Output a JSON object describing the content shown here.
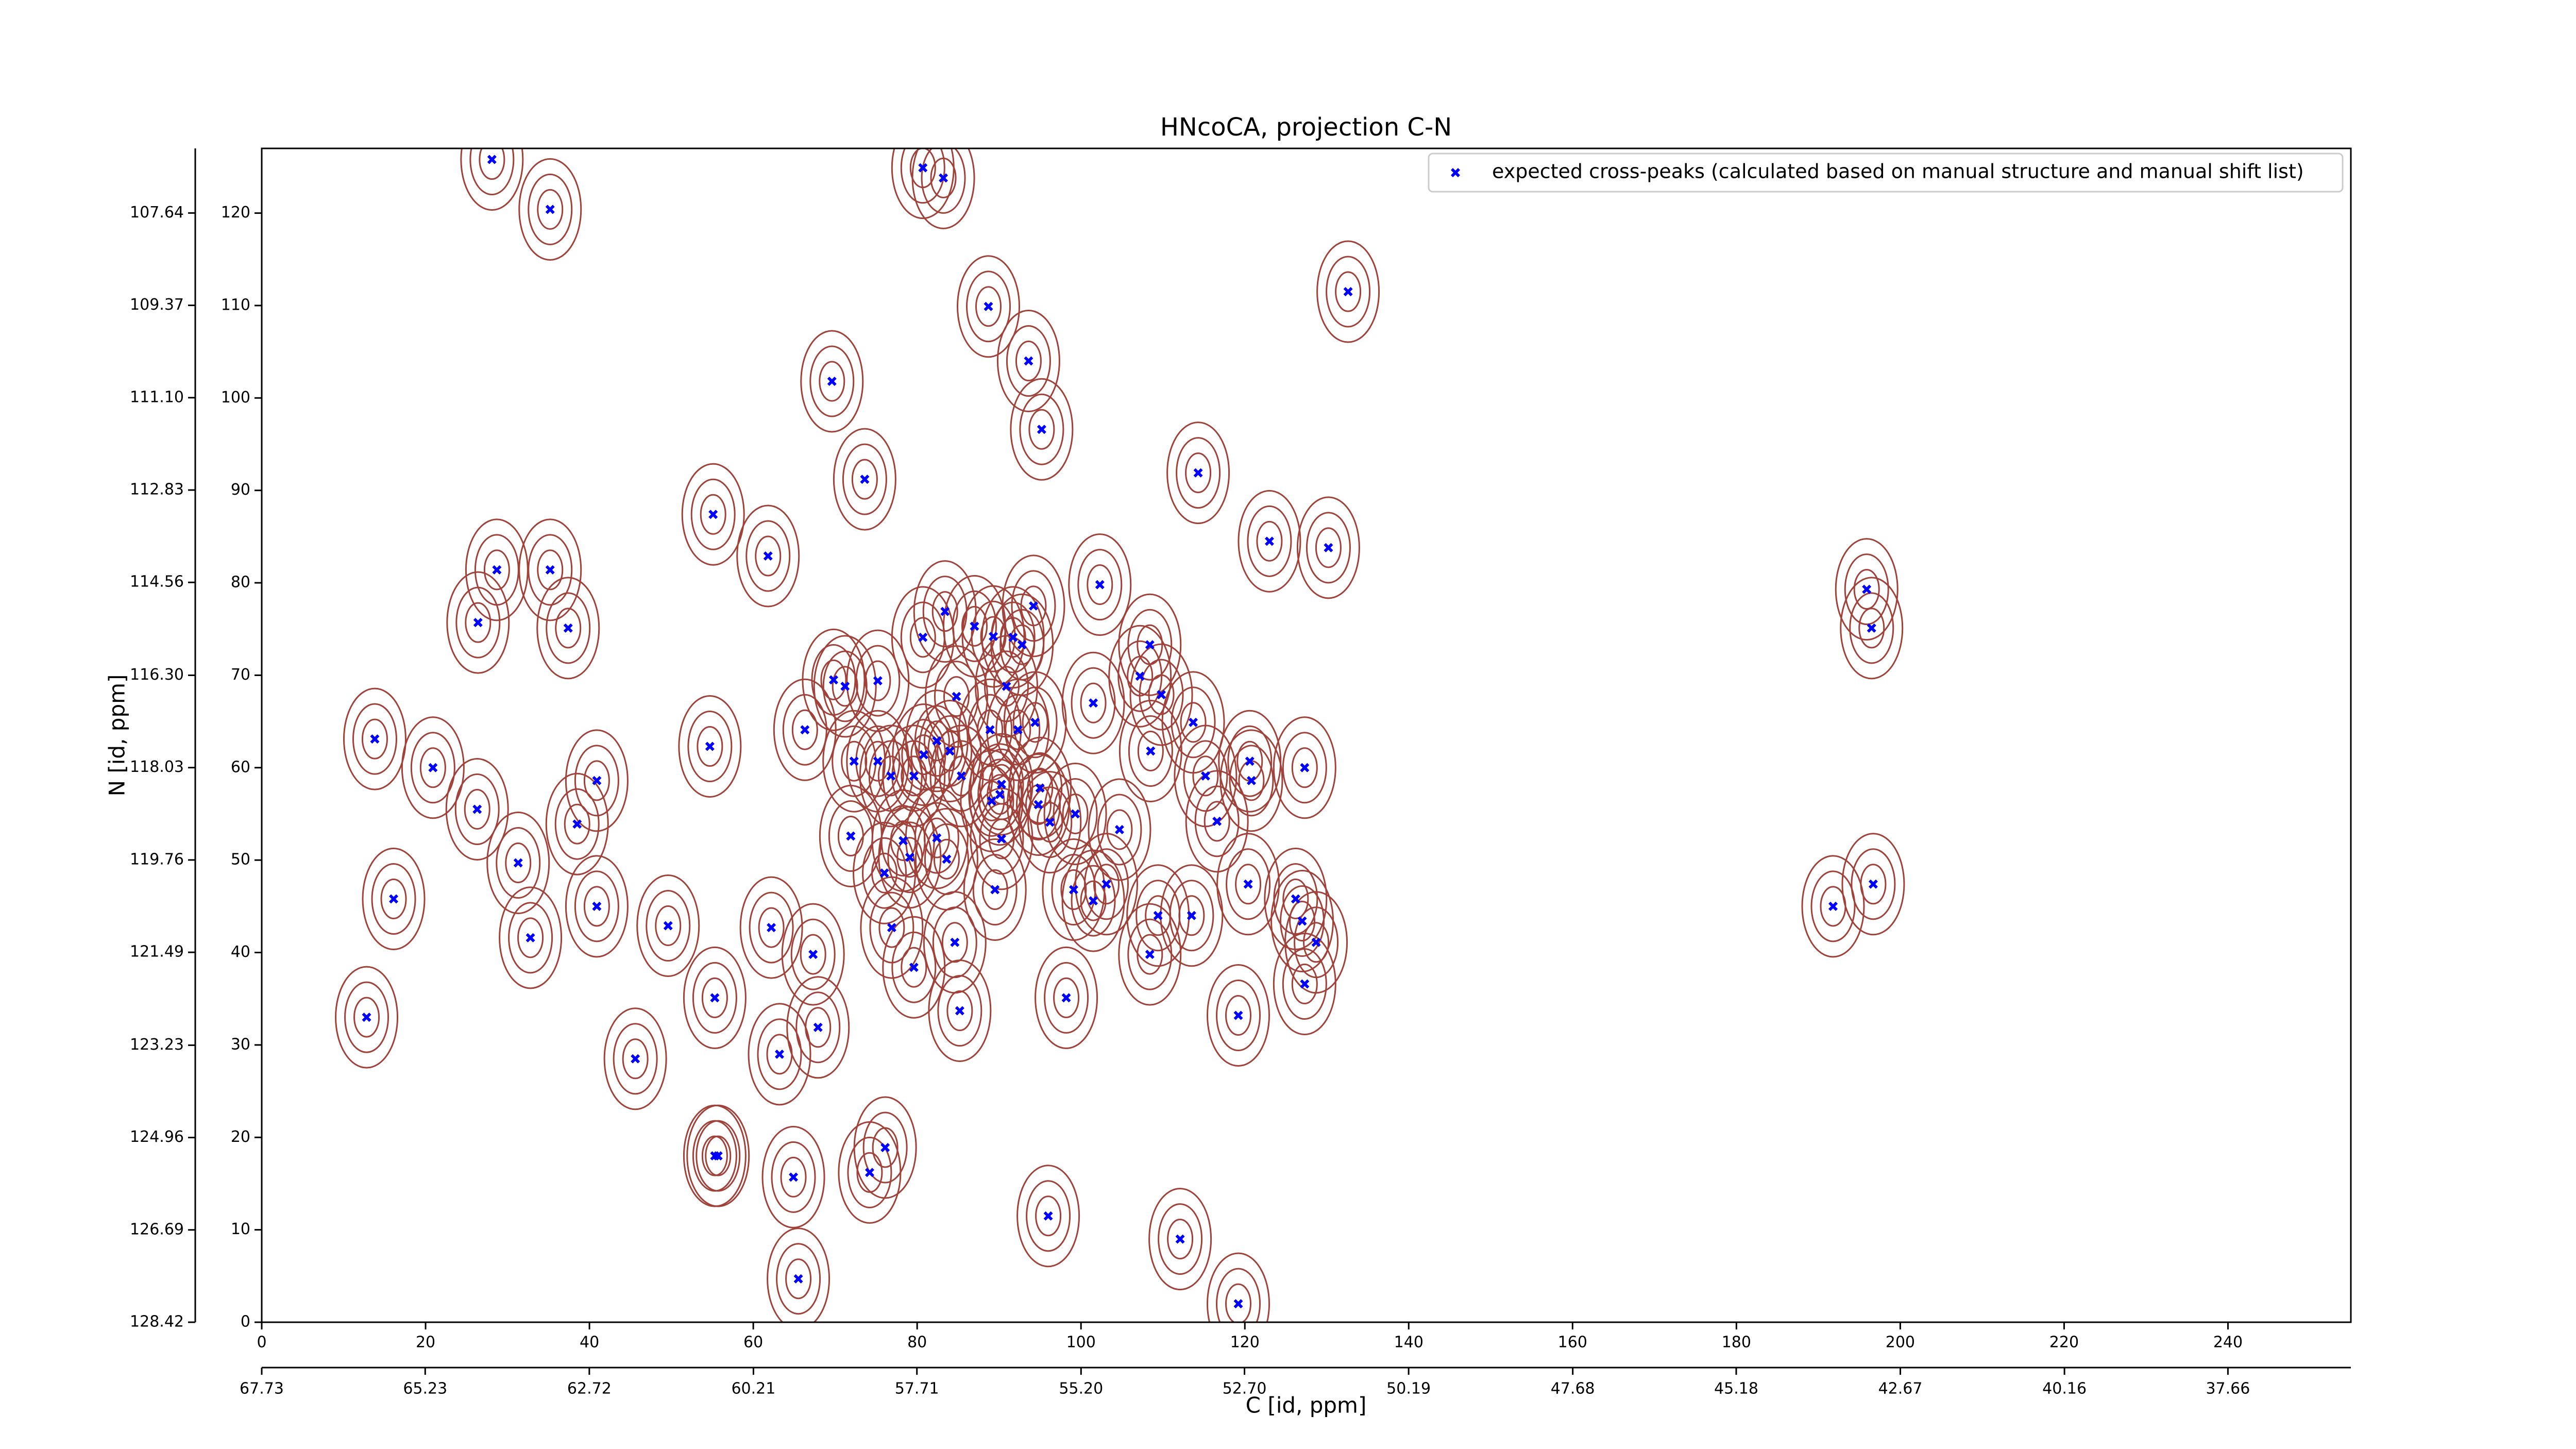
{
  "chart_data": {
    "type": "scatter",
    "title": "HNcoCA, projection C-N",
    "xlabel": "C [id, ppm]",
    "ylabel": "N [id, ppm]",
    "xlim": [
      0,
      255
    ],
    "ylim": [
      0,
      127
    ],
    "xticks": [
      0,
      20,
      40,
      60,
      80,
      100,
      120,
      140,
      160,
      180,
      200,
      220,
      240
    ],
    "yticks": [
      0,
      10,
      20,
      30,
      40,
      50,
      60,
      70,
      80,
      90,
      100,
      110,
      120
    ],
    "x2lim": [
      67.73,
      35.78
    ],
    "x2ticks": [
      67.73,
      65.23,
      62.72,
      60.21,
      57.71,
      {
        "value": 55.2,
        "label": "55.20"
      },
      {
        "value": 52.7,
        "label": "52.70"
      },
      50.19,
      47.68,
      45.18,
      42.67,
      40.16,
      37.66
    ],
    "y2lim": [
      128.42,
      106.43
    ],
    "y2ticks": [
      128.42,
      126.69,
      124.96,
      123.23,
      121.49,
      119.76,
      118.03,
      {
        "value": 116.3,
        "label": "116.30"
      },
      114.56,
      112.83,
      {
        "value": 111.1,
        "label": "111.10"
      },
      109.37,
      107.64
    ],
    "legend": "upper right",
    "series": [
      {
        "name": "expected cross-peaks (calculated based on manual structure and manual shift list)",
        "color": "#0000ff",
        "x": [
          28.1,
          35.2,
          80.7,
          83.2,
          88.7,
          93.6,
          95.2,
          69.6,
          73.6,
          114.3,
          132.6,
          55.1,
          61.8,
          28.7,
          35.2,
          26.4,
          37.4,
          123,
          130.2,
          102.3,
          195.9,
          196.5,
          83.4,
          80.7,
          87,
          89.3,
          91.7,
          92.8,
          94.2,
          108.4,
          107.2,
          109.8,
          113.7,
          101.5,
          84.8,
          90.9,
          69.8,
          71.2,
          75.2,
          66.3,
          54.7,
          13.8,
          20.9,
          26.3,
          31.3,
          40.9,
          38.5,
          16.1,
          32.8,
          40.9,
          49.6,
          62.2,
          67.3,
          55.3,
          67.9,
          63.2,
          45.6,
          12.8,
          55.7,
          55.3,
          76.1,
          74.2,
          64.9,
          96,
          112.1,
          65.5,
          119.2,
          72.3,
          75.2,
          76.8,
          79.6,
          80.8,
          82.4,
          84,
          85.4,
          88.9,
          90.3,
          90.1,
          89.1,
          92.3,
          94.4,
          95,
          94.8,
          96.2,
          99.3,
          104.7,
          108.5,
          115.2,
          116.6,
          120.6,
          120.8,
          127.3,
          71.9,
          78.3,
          79.1,
          76,
          82.4,
          83.6,
          90.3,
          89.5,
          99.1,
          101.5,
          103.1,
          120.4,
          126.2,
          127,
          128.7,
          109.4,
          113.5,
          108.4,
          76.9,
          79.6,
          84.6,
          98.2,
          85.2,
          119.2,
          127.3,
          191.8,
          196.7
        ],
        "values": [
          125.8,
          120.4,
          124.9,
          123.8,
          109.9,
          104,
          96.6,
          101.8,
          91.2,
          91.9,
          111.5,
          87.4,
          82.9,
          81.4,
          81.4,
          75.7,
          75.1,
          84.5,
          83.8,
          79.8,
          79.3,
          75.1,
          76.9,
          74.1,
          75.3,
          74.2,
          74.1,
          73.3,
          77.5,
          73.3,
          69.9,
          67.9,
          64.9,
          67,
          67.7,
          68.8,
          69.5,
          68.8,
          69.4,
          64.1,
          62.3,
          63.1,
          60,
          55.5,
          49.7,
          58.6,
          53.9,
          45.8,
          41.6,
          45,
          42.9,
          42.7,
          39.8,
          35.1,
          31.9,
          29,
          28.5,
          33,
          18,
          18,
          18.9,
          16.2,
          15.7,
          11.5,
          9,
          4.7,
          2,
          60.7,
          60.7,
          59.1,
          59.1,
          61.4,
          62.9,
          61.8,
          59.1,
          64.1,
          58.2,
          57.1,
          56.4,
          64.1,
          64.9,
          57.8,
          56,
          54.1,
          55,
          53.3,
          61.8,
          59.1,
          54.2,
          60.7,
          58.6,
          60,
          52.6,
          52.1,
          50.3,
          48.6,
          52.4,
          50.1,
          52.3,
          46.8,
          46.8,
          45.6,
          47.4,
          47.4,
          45.8,
          43.4,
          41.1,
          44,
          44,
          39.8,
          42.7,
          38.4,
          41.1,
          35.1,
          33.7,
          33.2,
          36.6,
          45,
          47.4
        ]
      }
    ]
  }
}
